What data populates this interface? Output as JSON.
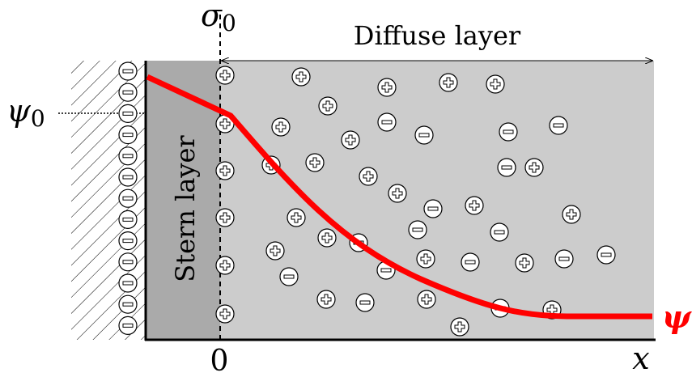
{
  "labels": {
    "sigma": {
      "symbol": "σ",
      "subscript": "0"
    },
    "diffuse_layer": "Diffuse layer",
    "psi0": {
      "symbol": "ψ",
      "subscript": "0"
    },
    "stern_layer": "Stern layer",
    "origin": "0",
    "x_axis": "x",
    "psi": "ψ"
  }
}
